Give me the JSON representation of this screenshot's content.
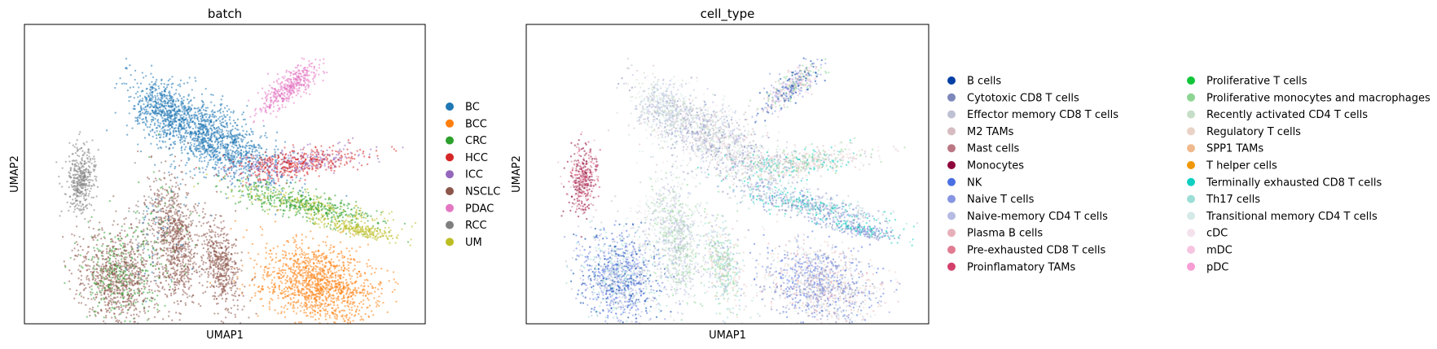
{
  "chart_data": [
    {
      "type": "scatter",
      "title": "batch",
      "xlabel": "UMAP1",
      "ylabel": "UMAP2",
      "legend_position": "right",
      "legend": [
        {
          "label": "BC",
          "color": "#1f77b4"
        },
        {
          "label": "BCC",
          "color": "#ff7f0e"
        },
        {
          "label": "CRC",
          "color": "#2ca02c"
        },
        {
          "label": "HCC",
          "color": "#d62728"
        },
        {
          "label": "ICC",
          "color": "#9467bd"
        },
        {
          "label": "NSCLC",
          "color": "#8c564b"
        },
        {
          "label": "PDAC",
          "color": "#e377c2"
        },
        {
          "label": "RCC",
          "color": "#7f7f7f"
        },
        {
          "label": "UM",
          "color": "#bcbd22"
        }
      ]
    },
    {
      "type": "scatter",
      "title": "cell_type",
      "xlabel": "UMAP1",
      "ylabel": "UMAP2",
      "legend_position": "right",
      "legend": [
        {
          "label": "B cells",
          "color": "#023fa5"
        },
        {
          "label": "Cytotoxic CD8 T cells",
          "color": "#7d87b9"
        },
        {
          "label": "Effector memory CD8 T cells",
          "color": "#bec1d4"
        },
        {
          "label": "M2 TAMs",
          "color": "#d6bcc0"
        },
        {
          "label": "Mast cells",
          "color": "#bb7784"
        },
        {
          "label": "Monocytes",
          "color": "#8e063b"
        },
        {
          "label": "NK",
          "color": "#4a6fe3"
        },
        {
          "label": "Naive T cells",
          "color": "#8595e1"
        },
        {
          "label": "Naive-memory CD4 T cells",
          "color": "#b5bbe3"
        },
        {
          "label": "Plasma B cells",
          "color": "#e6afb9"
        },
        {
          "label": "Pre-exhausted CD8 T cells",
          "color": "#e07b91"
        },
        {
          "label": "Proinflamatory TAMs",
          "color": "#d33f6a"
        },
        {
          "label": "Proliferative T cells",
          "color": "#11c638"
        },
        {
          "label": "Proliferative monocytes and macrophages",
          "color": "#8dd593"
        },
        {
          "label": "Recently activated CD4 T cells",
          "color": "#c6dec7"
        },
        {
          "label": "Regulatory T cells",
          "color": "#ead3c6"
        },
        {
          "label": "SPP1 TAMs",
          "color": "#f0b98d"
        },
        {
          "label": "T helper cells",
          "color": "#ef9708"
        },
        {
          "label": "Terminally exhausted CD8 T cells",
          "color": "#0fcfc0"
        },
        {
          "label": "Th17 cells",
          "color": "#9cded6"
        },
        {
          "label": "Transitional memory CD4 T cells",
          "color": "#d5eae7"
        },
        {
          "label": "cDC",
          "color": "#f3e1eb"
        },
        {
          "label": "mDC",
          "color": "#f6c4e1"
        },
        {
          "label": "pDC",
          "color": "#f79cd4"
        }
      ]
    }
  ]
}
